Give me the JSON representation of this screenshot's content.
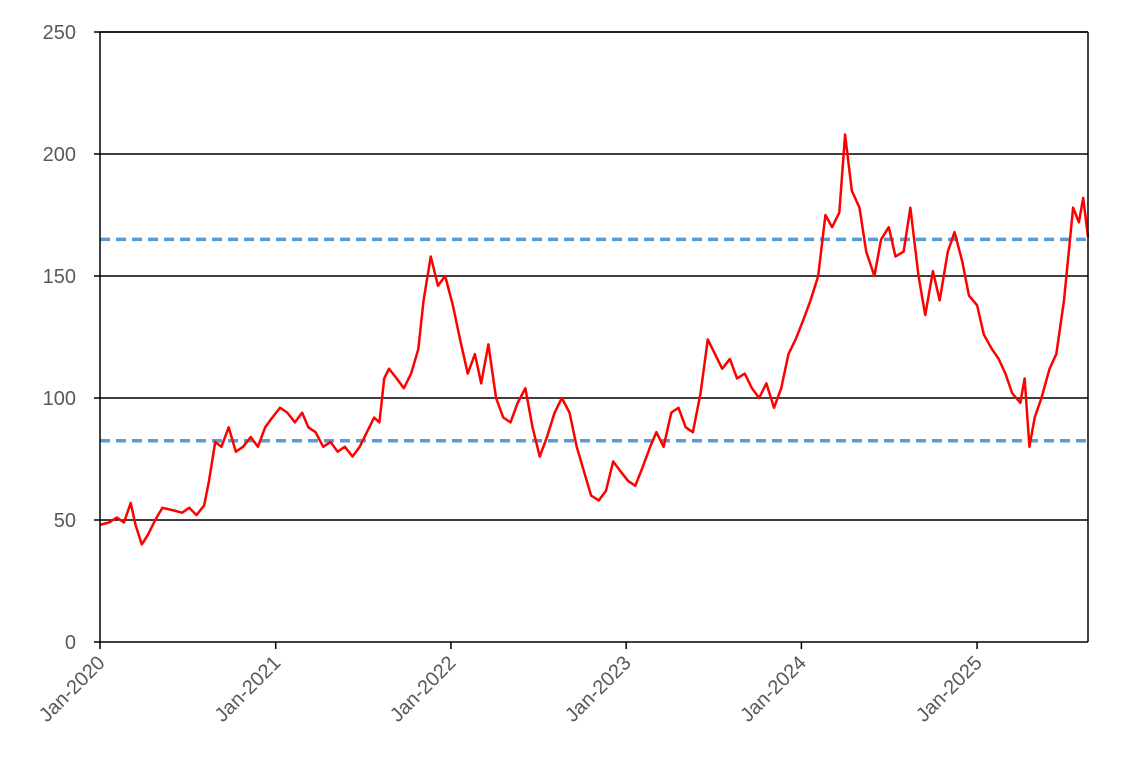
{
  "chart_data": {
    "type": "line",
    "title": "",
    "xlabel": "",
    "ylabel": "",
    "ylim": [
      0,
      250
    ],
    "xlim": [
      "2020-01-01",
      "2025-08-20"
    ],
    "yticks": [
      0,
      50,
      100,
      150,
      200,
      250
    ],
    "ytick_labels": [
      "0",
      "50",
      "100",
      "150",
      "200",
      "250"
    ],
    "xticks": [
      "2020-01-01",
      "2021-01-01",
      "2022-01-01",
      "2023-01-01",
      "2024-01-01",
      "2025-01-01"
    ],
    "xtick_labels": [
      "Jan-2020",
      "Jan-2021",
      "Jan-2022",
      "Jan-2023",
      "Jan-2024",
      "Jan-2025"
    ],
    "grid": "horizontal",
    "legend": "none",
    "series": [
      {
        "color": "#ff0000",
        "points": [
          [
            "2020-01-01",
            48
          ],
          [
            "2020-01-20",
            49
          ],
          [
            "2020-02-05",
            51
          ],
          [
            "2020-02-20",
            49
          ],
          [
            "2020-03-05",
            57
          ],
          [
            "2020-03-15",
            48
          ],
          [
            "2020-03-28",
            40
          ],
          [
            "2020-04-10",
            44
          ],
          [
            "2020-04-25",
            50
          ],
          [
            "2020-05-10",
            55
          ],
          [
            "2020-06-01",
            54
          ],
          [
            "2020-06-20",
            53
          ],
          [
            "2020-07-05",
            55
          ],
          [
            "2020-07-20",
            52
          ],
          [
            "2020-08-05",
            56
          ],
          [
            "2020-08-15",
            66
          ],
          [
            "2020-08-28",
            82
          ],
          [
            "2020-09-10",
            80
          ],
          [
            "2020-09-25",
            88
          ],
          [
            "2020-10-10",
            78
          ],
          [
            "2020-10-25",
            80
          ],
          [
            "2020-11-10",
            84
          ],
          [
            "2020-11-25",
            80
          ],
          [
            "2020-12-10",
            88
          ],
          [
            "2020-12-25",
            92
          ],
          [
            "2021-01-10",
            96
          ],
          [
            "2021-01-25",
            94
          ],
          [
            "2021-02-10",
            90
          ],
          [
            "2021-02-25",
            94
          ],
          [
            "2021-03-10",
            88
          ],
          [
            "2021-03-25",
            86
          ],
          [
            "2021-04-10",
            80
          ],
          [
            "2021-04-25",
            82
          ],
          [
            "2021-05-10",
            78
          ],
          [
            "2021-05-25",
            80
          ],
          [
            "2021-06-10",
            76
          ],
          [
            "2021-06-25",
            80
          ],
          [
            "2021-07-10",
            86
          ],
          [
            "2021-07-25",
            92
          ],
          [
            "2021-08-05",
            90
          ],
          [
            "2021-08-15",
            108
          ],
          [
            "2021-08-25",
            112
          ],
          [
            "2021-09-10",
            108
          ],
          [
            "2021-09-25",
            104
          ],
          [
            "2021-10-10",
            110
          ],
          [
            "2021-10-25",
            120
          ],
          [
            "2021-11-05",
            140
          ],
          [
            "2021-11-20",
            158
          ],
          [
            "2021-12-05",
            146
          ],
          [
            "2021-12-20",
            150
          ],
          [
            "2022-01-05",
            138
          ],
          [
            "2022-01-20",
            124
          ],
          [
            "2022-02-05",
            110
          ],
          [
            "2022-02-20",
            118
          ],
          [
            "2022-03-05",
            106
          ],
          [
            "2022-03-20",
            122
          ],
          [
            "2022-04-05",
            100
          ],
          [
            "2022-04-20",
            92
          ],
          [
            "2022-05-05",
            90
          ],
          [
            "2022-05-20",
            98
          ],
          [
            "2022-06-05",
            104
          ],
          [
            "2022-06-20",
            88
          ],
          [
            "2022-07-05",
            76
          ],
          [
            "2022-07-20",
            84
          ],
          [
            "2022-08-05",
            94
          ],
          [
            "2022-08-20",
            100
          ],
          [
            "2022-09-05",
            94
          ],
          [
            "2022-09-20",
            80
          ],
          [
            "2022-10-05",
            70
          ],
          [
            "2022-10-20",
            60
          ],
          [
            "2022-11-05",
            58
          ],
          [
            "2022-11-20",
            62
          ],
          [
            "2022-12-05",
            74
          ],
          [
            "2022-12-20",
            70
          ],
          [
            "2023-01-05",
            66
          ],
          [
            "2023-01-20",
            64
          ],
          [
            "2023-02-05",
            72
          ],
          [
            "2023-02-20",
            80
          ],
          [
            "2023-03-05",
            86
          ],
          [
            "2023-03-20",
            80
          ],
          [
            "2023-04-05",
            94
          ],
          [
            "2023-04-20",
            96
          ],
          [
            "2023-05-05",
            88
          ],
          [
            "2023-05-20",
            86
          ],
          [
            "2023-06-05",
            102
          ],
          [
            "2023-06-20",
            124
          ],
          [
            "2023-07-05",
            118
          ],
          [
            "2023-07-20",
            112
          ],
          [
            "2023-08-05",
            116
          ],
          [
            "2023-08-20",
            108
          ],
          [
            "2023-09-05",
            110
          ],
          [
            "2023-09-20",
            104
          ],
          [
            "2023-10-05",
            100
          ],
          [
            "2023-10-20",
            106
          ],
          [
            "2023-11-05",
            96
          ],
          [
            "2023-11-20",
            104
          ],
          [
            "2023-12-05",
            118
          ],
          [
            "2023-12-20",
            124
          ],
          [
            "2024-01-05",
            132
          ],
          [
            "2024-01-20",
            140
          ],
          [
            "2024-02-05",
            150
          ],
          [
            "2024-02-20",
            175
          ],
          [
            "2024-03-05",
            170
          ],
          [
            "2024-03-20",
            176
          ],
          [
            "2024-04-01",
            208
          ],
          [
            "2024-04-15",
            185
          ],
          [
            "2024-05-01",
            178
          ],
          [
            "2024-05-15",
            160
          ],
          [
            "2024-06-01",
            150
          ],
          [
            "2024-06-15",
            165
          ],
          [
            "2024-07-01",
            170
          ],
          [
            "2024-07-15",
            158
          ],
          [
            "2024-08-01",
            160
          ],
          [
            "2024-08-15",
            178
          ],
          [
            "2024-09-01",
            150
          ],
          [
            "2024-09-15",
            134
          ],
          [
            "2024-10-01",
            152
          ],
          [
            "2024-10-15",
            140
          ],
          [
            "2024-11-01",
            160
          ],
          [
            "2024-11-15",
            168
          ],
          [
            "2024-12-01",
            156
          ],
          [
            "2024-12-15",
            142
          ],
          [
            "2025-01-01",
            138
          ],
          [
            "2025-01-15",
            126
          ],
          [
            "2025-02-01",
            120
          ],
          [
            "2025-02-15",
            116
          ],
          [
            "2025-03-01",
            110
          ],
          [
            "2025-03-15",
            102
          ],
          [
            "2025-04-01",
            98
          ],
          [
            "2025-04-10",
            108
          ],
          [
            "2025-04-20",
            80
          ],
          [
            "2025-05-01",
            92
          ],
          [
            "2025-05-15",
            100
          ],
          [
            "2025-06-01",
            112
          ],
          [
            "2025-06-15",
            118
          ],
          [
            "2025-07-01",
            140
          ],
          [
            "2025-07-10",
            158
          ],
          [
            "2025-07-20",
            178
          ],
          [
            "2025-08-01",
            172
          ],
          [
            "2025-08-10",
            182
          ],
          [
            "2025-08-20",
            166
          ]
        ]
      }
    ],
    "reference_lines": [
      {
        "y": 82.5,
        "color": "#5b9bd5",
        "style": "dashed"
      },
      {
        "y": 165,
        "color": "#5b9bd5",
        "style": "dashed"
      }
    ]
  }
}
